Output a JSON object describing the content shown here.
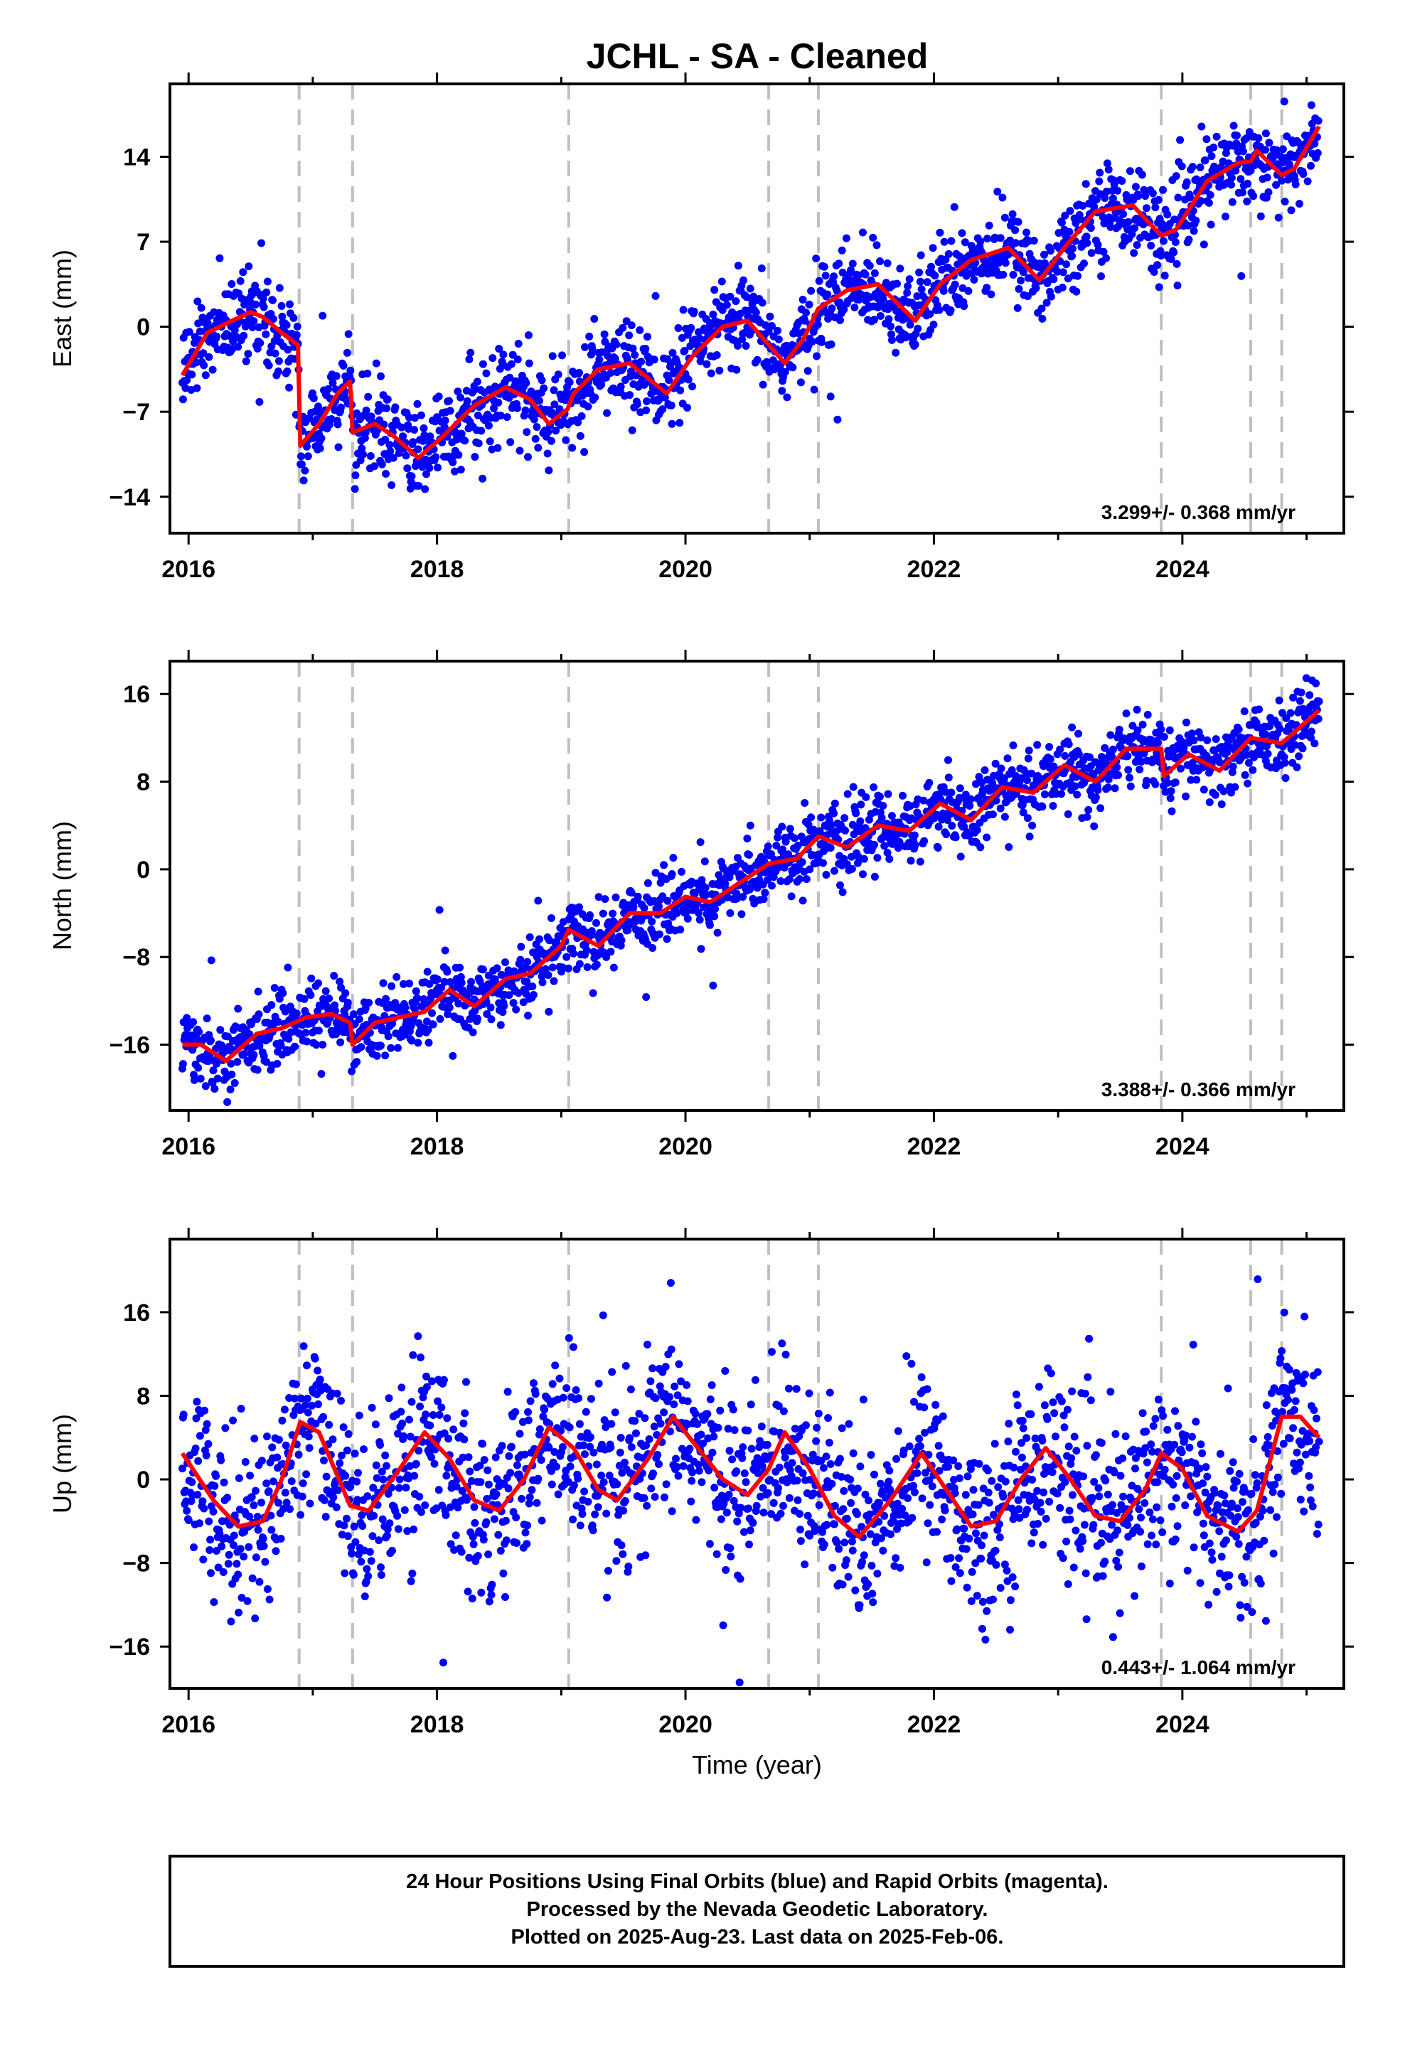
{
  "title": "JCHL  - SA - Cleaned",
  "footer": {
    "lines": [
      "24 Hour Positions Using Final Orbits (blue) and Rapid Orbits (magenta).",
      "Processed by the Nevada Geodetic Laboratory.",
      "Plotted on 2025-Aug-23. Last data on 2025-Feb-06."
    ]
  },
  "colors": {
    "points": "#0000ff",
    "model": "#ff0000",
    "steps": "#bfbfbf",
    "frame": "#000000"
  },
  "chart_data": [
    {
      "type": "scatter",
      "name": "east",
      "ylabel": "East (mm)",
      "xlabel": "",
      "xlim": [
        2015.85,
        2025.3
      ],
      "ylim": [
        -17,
        20
      ],
      "xticks": [
        2016,
        2018,
        2020,
        2022,
        2024
      ],
      "yticks": [
        -14,
        -7,
        0,
        7,
        14
      ],
      "rate_label": "3.299+/- 0.368 mm/yr",
      "step_epochs": [
        2016.89,
        2017.32,
        2019.06,
        2020.67,
        2021.07,
        2023.83,
        2024.55,
        2024.8
      ],
      "model": {
        "x": [
          2015.95,
          2016.15,
          2016.35,
          2016.5,
          2016.6,
          2016.75,
          2016.88,
          2016.9,
          2017.05,
          2017.2,
          2017.3,
          2017.32,
          2017.5,
          2017.65,
          2017.85,
          2018.05,
          2018.3,
          2018.55,
          2018.75,
          2018.9,
          2019.05,
          2019.1,
          2019.3,
          2019.55,
          2019.85,
          2020.05,
          2020.3,
          2020.5,
          2020.67,
          2020.8,
          2020.95,
          2021.07,
          2021.3,
          2021.55,
          2021.85,
          2022.05,
          2022.3,
          2022.6,
          2022.85,
          2023.05,
          2023.3,
          2023.6,
          2023.83,
          2023.95,
          2024.2,
          2024.45,
          2024.55,
          2024.6,
          2024.8,
          2024.9,
          2025.1
        ],
        "y": [
          -4,
          -0.5,
          0.5,
          1.2,
          0.8,
          -0.5,
          -1.5,
          -9.8,
          -8,
          -5.5,
          -4.5,
          -8.7,
          -8,
          -9,
          -10.8,
          -9,
          -6.5,
          -5,
          -6,
          -8,
          -6.8,
          -5.5,
          -3.5,
          -3,
          -5.5,
          -2.5,
          0,
          0.5,
          -1.5,
          -3,
          -1,
          1.5,
          3,
          3.5,
          0.5,
          3.5,
          5.5,
          6.5,
          3.8,
          6.5,
          9.5,
          10,
          7.5,
          8,
          12,
          13.5,
          13.6,
          14.5,
          12.5,
          13,
          16.5
        ]
      },
      "points_summary": "daily solutions around the model curve, scatter about +/-2 mm",
      "noise": 1.8
    },
    {
      "type": "scatter",
      "name": "north",
      "ylabel": "North (mm)",
      "xlabel": "",
      "xlim": [
        2015.85,
        2025.3
      ],
      "ylim": [
        -22,
        19
      ],
      "xticks": [
        2016,
        2018,
        2020,
        2022,
        2024
      ],
      "yticks": [
        -16,
        -8,
        0,
        8,
        16
      ],
      "rate_label": "3.388+/- 0.366 mm/yr",
      "step_epochs": [
        2016.89,
        2017.32,
        2019.06,
        2020.67,
        2021.07,
        2023.83,
        2024.55,
        2024.8
      ],
      "model": {
        "x": [
          2015.95,
          2016.1,
          2016.3,
          2016.55,
          2016.75,
          2016.95,
          2017.15,
          2017.3,
          2017.32,
          2017.5,
          2017.7,
          2017.9,
          2018.1,
          2018.3,
          2018.55,
          2018.75,
          2019.0,
          2019.06,
          2019.3,
          2019.55,
          2019.8,
          2020.0,
          2020.2,
          2020.4,
          2020.67,
          2020.9,
          2021.07,
          2021.3,
          2021.55,
          2021.8,
          2022.05,
          2022.3,
          2022.55,
          2022.8,
          2023.05,
          2023.3,
          2023.55,
          2023.83,
          2023.85,
          2024.05,
          2024.3,
          2024.55,
          2024.8,
          2025.1
        ],
        "y": [
          -16,
          -16,
          -17.5,
          -15,
          -14.5,
          -13.5,
          -13.2,
          -14,
          -16,
          -14,
          -13.5,
          -13,
          -11,
          -12.5,
          -10,
          -9.5,
          -7,
          -5.5,
          -7,
          -4,
          -4,
          -2.5,
          -3,
          -1.5,
          0.5,
          1,
          3,
          2,
          4,
          3.5,
          6,
          4.5,
          7.5,
          7,
          9.5,
          8,
          11,
          11,
          8.5,
          10.5,
          9,
          12,
          11.5,
          14.5
        ]
      },
      "points_summary": "daily solutions around the model curve, scatter about +/-2 mm",
      "noise": 1.6
    },
    {
      "type": "scatter",
      "name": "up",
      "ylabel": "Up (mm)",
      "xlabel": "Time (year)",
      "xlim": [
        2015.85,
        2025.3
      ],
      "ylim": [
        -20,
        23
      ],
      "xticks": [
        2016,
        2018,
        2020,
        2022,
        2024
      ],
      "yticks": [
        -16,
        -8,
        0,
        8,
        16
      ],
      "rate_label": "0.443+/- 1.064 mm/yr",
      "step_epochs": [
        2016.89,
        2017.32,
        2019.06,
        2020.67,
        2021.07,
        2023.83,
        2024.55,
        2024.8
      ],
      "model": {
        "x": [
          2015.95,
          2016.2,
          2016.4,
          2016.6,
          2016.75,
          2016.9,
          2017.05,
          2017.3,
          2017.45,
          2017.7,
          2017.9,
          2018.1,
          2018.3,
          2018.5,
          2018.7,
          2018.9,
          2019.1,
          2019.3,
          2019.45,
          2019.7,
          2019.9,
          2020.1,
          2020.3,
          2020.5,
          2020.67,
          2020.8,
          2021.0,
          2021.2,
          2021.4,
          2021.65,
          2021.9,
          2022.1,
          2022.3,
          2022.5,
          2022.7,
          2022.9,
          2023.1,
          2023.3,
          2023.5,
          2023.7,
          2023.83,
          2024.0,
          2024.2,
          2024.45,
          2024.6,
          2024.8,
          2024.95,
          2025.1
        ],
        "y": [
          2.5,
          -2,
          -4.5,
          -4,
          0,
          5.5,
          4.5,
          -2.5,
          -3,
          1,
          4.5,
          2,
          -2,
          -3,
          0,
          5,
          3,
          -1,
          -2,
          2,
          6,
          3,
          0,
          -1.5,
          1,
          4.5,
          1,
          -3.5,
          -5.5,
          -2,
          2.5,
          -1,
          -4.5,
          -4,
          0,
          3,
          0,
          -3.5,
          -4,
          -1,
          2.5,
          1,
          -3.5,
          -5,
          -3,
          6,
          6,
          4
        ]
      },
      "points_summary": "daily solutions around the model curve, scatter about +/-5 mm",
      "noise": 4.2
    }
  ]
}
